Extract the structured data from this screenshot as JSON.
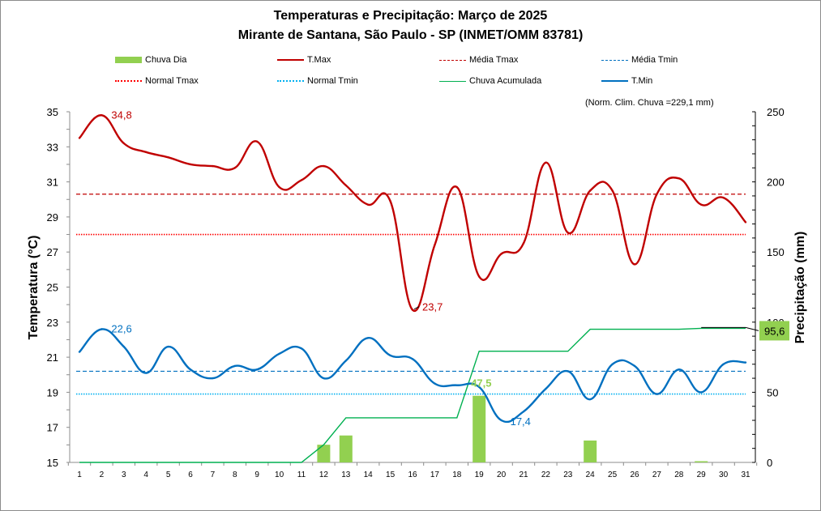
{
  "chart_data": {
    "type": "line",
    "title": "Temperaturas e Precipitação: Março de 2025",
    "subtitle": "Mirante de Santana, São Paulo - SP (INMET/OMM 83781)",
    "note": "(Norm. Clim. Chuva =229,1 mm)",
    "ylabel_left": "Temperatura (°C)",
    "ylabel_right": "Precipitação (mm)",
    "xlabel": "",
    "ylim_left": [
      15,
      35
    ],
    "yticks_left": [
      "15",
      "17",
      "19",
      "21",
      "23",
      "25",
      "27",
      "29",
      "31",
      "33",
      "35"
    ],
    "ylim_right": [
      0,
      250
    ],
    "yticks_right": [
      "0",
      "50",
      "100",
      "150",
      "200",
      "250"
    ],
    "x": [
      1,
      2,
      3,
      4,
      5,
      6,
      7,
      8,
      9,
      10,
      11,
      12,
      13,
      14,
      15,
      16,
      17,
      18,
      19,
      20,
      21,
      22,
      23,
      24,
      25,
      26,
      27,
      28,
      29,
      30,
      31
    ],
    "xtick_labels": [
      "1",
      "2",
      "3",
      "4",
      "5",
      "6",
      "7",
      "8",
      "9",
      "10",
      "11",
      "12",
      "13",
      "14",
      "15",
      "16",
      "17",
      "18",
      "19",
      "20",
      "21",
      "22",
      "23",
      "24",
      "25",
      "26",
      "27",
      "28",
      "29",
      "30",
      "31"
    ],
    "grid": false,
    "legend": [
      {
        "key": "chuva_dia",
        "label": "Chuva Dia",
        "color": "#92d050",
        "style": "bar"
      },
      {
        "key": "tmax",
        "label": "T.Max",
        "color": "#c00000",
        "style": "solid-thick"
      },
      {
        "key": "media_tmax",
        "label": "Média Tmax",
        "color": "#c00000",
        "style": "dashed"
      },
      {
        "key": "media_tmin",
        "label": "Média Tmin",
        "color": "#0070c0",
        "style": "dashed"
      },
      {
        "key": "normal_tmax",
        "label": "Normal Tmax",
        "color": "#ff0000",
        "style": "dotted"
      },
      {
        "key": "normal_tmin",
        "label": "Normal Tmin",
        "color": "#00b0f0",
        "style": "dotted"
      },
      {
        "key": "chuva_acumulada",
        "label": "Chuva Acumulada",
        "color": "#00b050",
        "style": "solid-thin"
      },
      {
        "key": "tmin",
        "label": "T.Min",
        "color": "#0070c0",
        "style": "solid-thick"
      }
    ],
    "legend_position": "top",
    "series": [
      {
        "name": "T.Max",
        "axis": "left",
        "values": [
          33.5,
          34.8,
          33.2,
          32.7,
          32.4,
          32.0,
          31.9,
          31.8,
          33.3,
          30.7,
          31.1,
          31.9,
          30.8,
          29.7,
          29.9,
          23.7,
          27.4,
          30.7,
          25.6,
          26.9,
          27.5,
          32.1,
          28.1,
          30.5,
          30.5,
          26.3,
          30.3,
          31.2,
          29.7,
          30.1,
          28.7
        ]
      },
      {
        "name": "T.Min",
        "axis": "left",
        "values": [
          21.3,
          22.6,
          21.6,
          20.1,
          21.6,
          20.3,
          19.8,
          20.5,
          20.3,
          21.2,
          21.5,
          19.8,
          20.8,
          22.1,
          21.1,
          20.9,
          19.5,
          19.4,
          19.3,
          17.4,
          17.9,
          19.2,
          20.2,
          18.6,
          20.6,
          20.5,
          18.9,
          20.3,
          19.0,
          20.6,
          20.7
        ]
      },
      {
        "name": "Chuva Dia",
        "axis": "right",
        "values": [
          0,
          0,
          0,
          0,
          0,
          0,
          0,
          0,
          0,
          0,
          0,
          12.6,
          19.2,
          0,
          0,
          0,
          0,
          0,
          47.5,
          0,
          0,
          0,
          0,
          15.6,
          0,
          0,
          0,
          0,
          0.7,
          0,
          0
        ]
      },
      {
        "name": "Chuva Acumulada",
        "axis": "right",
        "values": [
          0,
          0,
          0,
          0,
          0,
          0,
          0,
          0,
          0,
          0,
          0,
          12.6,
          31.8,
          31.8,
          31.8,
          31.8,
          31.8,
          31.8,
          79.3,
          79.3,
          79.3,
          79.3,
          79.3,
          94.9,
          94.9,
          94.9,
          94.9,
          94.9,
          95.6,
          95.6,
          95.6
        ]
      }
    ],
    "reference_lines": {
      "media_tmax": 30.3,
      "normal_tmax": 28.0,
      "media_tmin": 20.2,
      "normal_tmin": 18.9
    },
    "annotations": {
      "max_tmax": {
        "label": "34,8",
        "day": 2,
        "value": 34.8
      },
      "min_tmax": {
        "label": "23,7",
        "day": 16,
        "value": 23.7
      },
      "max_tmin": {
        "label": "22,6",
        "day": 2,
        "value": 22.6
      },
      "min_tmin": {
        "label": "17,4",
        "day": 20,
        "value": 17.4
      },
      "max_rain": {
        "label": "47,5",
        "day": 19,
        "value": 47.5
      },
      "total_rain": {
        "label": "95,6",
        "value": 95.6
      }
    },
    "colors": {
      "tmax": "#c00000",
      "tmin": "#0070c0",
      "rain_bar": "#92d050",
      "rain_accum": "#00b050",
      "normal_tmax": "#ff0000",
      "normal_tmin": "#00b0f0",
      "axis": "#8c8c8c"
    }
  }
}
